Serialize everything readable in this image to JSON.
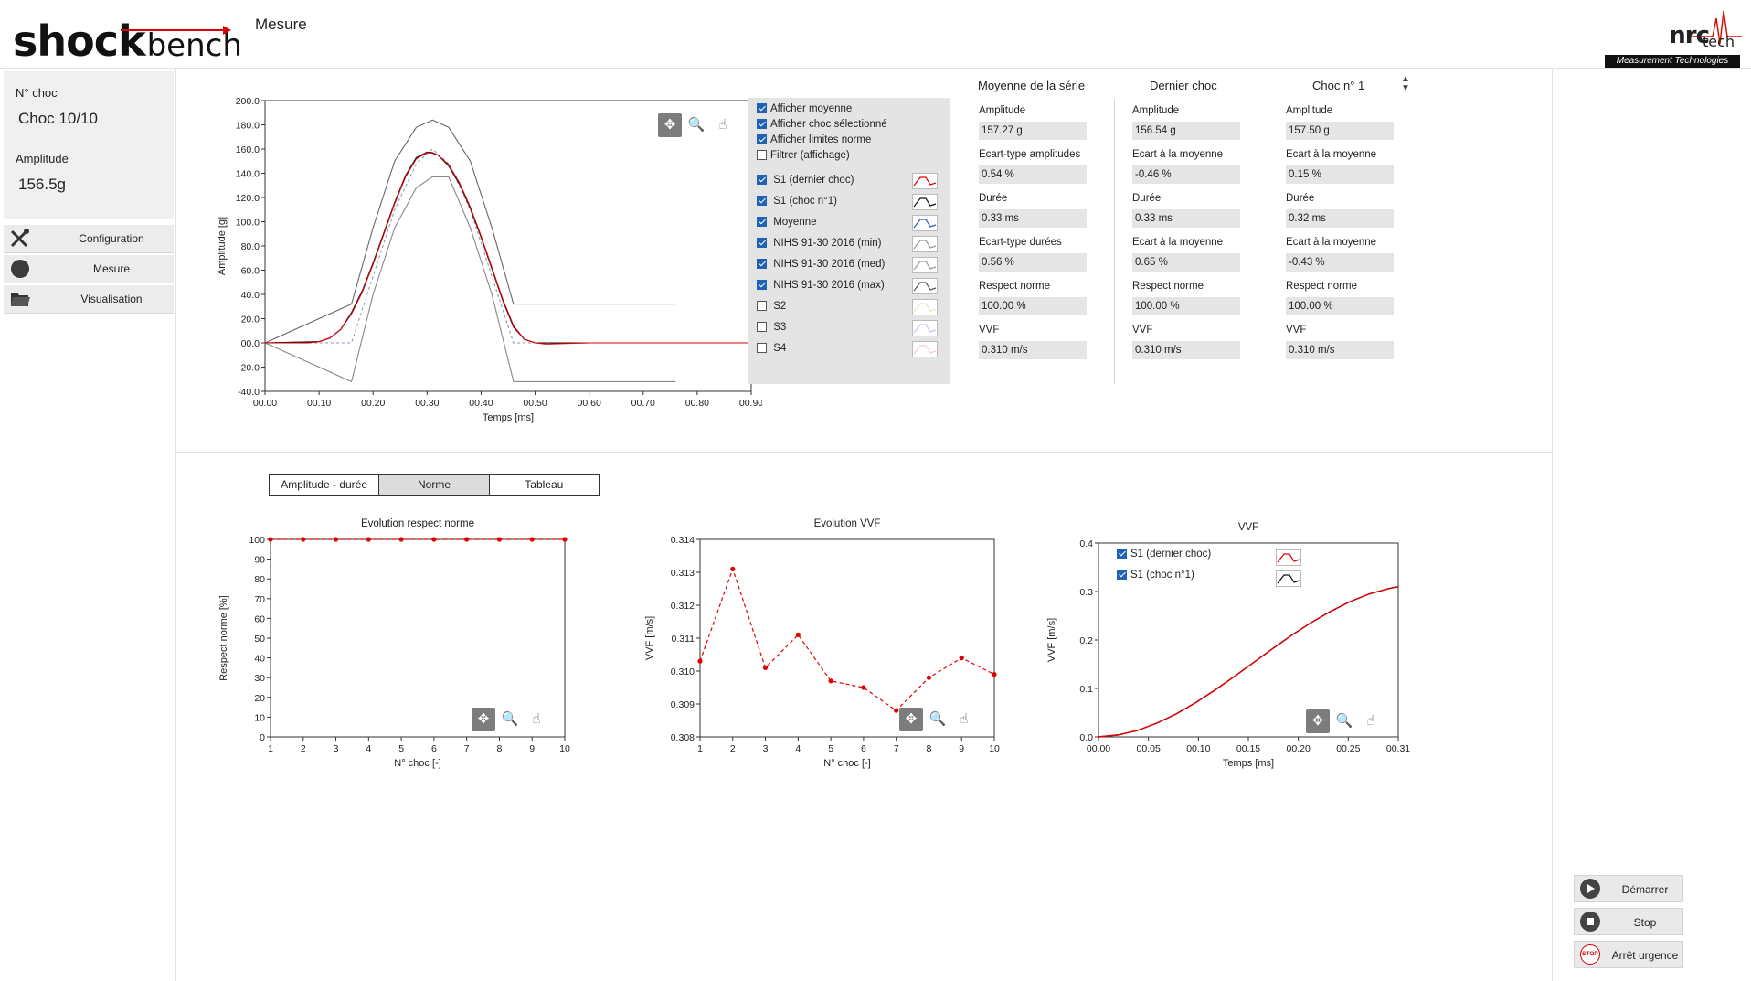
{
  "app": {
    "logo_main": "shock",
    "logo_sub": "bench",
    "page_title": "Mesure",
    "brand_name": "nrc",
    "brand_tech": "tech",
    "brand_tagline": "Measurement Technologies"
  },
  "sidebar": {
    "shock_no_label": "N° choc",
    "shock_no_value": "Choc 10/10",
    "amplitude_label": "Amplitude",
    "amplitude_value": "156.5g",
    "nav": [
      {
        "label": "Configuration",
        "icon": "wrench-screwdriver-icon"
      },
      {
        "label": "Mesure",
        "icon": "record-circle-icon"
      },
      {
        "label": "Visualisation",
        "icon": "folder-icon"
      }
    ]
  },
  "main_chart": {
    "legend_options": [
      {
        "label": "Afficher moyenne",
        "checked": true
      },
      {
        "label": "Afficher choc sélectionné",
        "checked": true
      },
      {
        "label": "Afficher limites norme",
        "checked": true
      },
      {
        "label": "Filtrer (affichage)",
        "checked": false
      }
    ],
    "legend_series": [
      {
        "label": "S1 (dernier choc)",
        "checked": true,
        "color": "#e00000"
      },
      {
        "label": "S1 (choc n°1)",
        "checked": true,
        "color": "#111111"
      },
      {
        "label": "Moyenne",
        "checked": true,
        "color": "#3355cc"
      },
      {
        "label": "NIHS 91-30 2016 (min)",
        "checked": true,
        "color": "#999999"
      },
      {
        "label": "NIHS 91-30 2016 (med)",
        "checked": true,
        "color": "#999999"
      },
      {
        "label": "NIHS 91-30 2016 (max)",
        "checked": true,
        "color": "#555555"
      },
      {
        "label": "S2",
        "checked": false,
        "color": "#d9cc88"
      },
      {
        "label": "S3",
        "checked": false,
        "color": "#8899dd"
      },
      {
        "label": "S4",
        "checked": false,
        "color": "#e8a0b0"
      }
    ]
  },
  "stats": {
    "columns": [
      {
        "header": "Moyenne de la série",
        "fields": [
          {
            "label": "Amplitude",
            "value": "157.27 g"
          },
          {
            "label": "Ecart-type amplitudes",
            "value": "0.54 %"
          },
          {
            "label": "Durée",
            "value": "0.33 ms"
          },
          {
            "label": "Ecart-type durées",
            "value": "0.56 %"
          },
          {
            "label": "Respect norme",
            "value": "100.00 %"
          },
          {
            "label": "VVF",
            "value": "0.310 m/s"
          }
        ]
      },
      {
        "header": "Dernier choc",
        "fields": [
          {
            "label": "Amplitude",
            "value": "156.54 g"
          },
          {
            "label": "Ecart à la moyenne",
            "value": "-0.46 %"
          },
          {
            "label": "Durée",
            "value": "0.33 ms"
          },
          {
            "label": "Ecart à la moyenne",
            "value": "0.65 %"
          },
          {
            "label": "Respect norme",
            "value": "100.00 %"
          },
          {
            "label": "VVF",
            "value": "0.310 m/s"
          }
        ]
      },
      {
        "header": "Choc n° 1",
        "fields": [
          {
            "label": "Amplitude",
            "value": "157.50 g"
          },
          {
            "label": "Ecart à la moyenne",
            "value": "0.15 %"
          },
          {
            "label": "Durée",
            "value": "0.32 ms"
          },
          {
            "label": "Ecart à la moyenne",
            "value": "-0.43 %"
          },
          {
            "label": "Respect norme",
            "value": "100.00 %"
          },
          {
            "label": "VVF",
            "value": "0.310 m/s"
          }
        ]
      }
    ]
  },
  "tabs": [
    {
      "label": "Amplitude - durée",
      "selected": false
    },
    {
      "label": "Norme",
      "selected": true
    },
    {
      "label": "Tableau",
      "selected": false
    }
  ],
  "bottom_legend": [
    {
      "label": "S1 (dernier choc)",
      "checked": true,
      "color": "#e00000"
    },
    {
      "label": "S1 (choc n°1)",
      "checked": true,
      "color": "#111111"
    }
  ],
  "actions": [
    {
      "label": "Démarrer",
      "icon": "play-icon"
    },
    {
      "label": "Stop",
      "icon": "stop-icon"
    },
    {
      "label": "Arrêt urgence",
      "icon": "emergency-stop-icon",
      "icon_text": "STOP"
    }
  ],
  "toolbar_icons": [
    "pan-icon",
    "zoom-icon",
    "hand-pointer-icon"
  ],
  "chart_data": [
    {
      "type": "line",
      "xlabel": "Temps [ms]",
      "ylabel": "Amplitude [g]",
      "xlim": [
        0,
        0.9
      ],
      "ylim": [
        -40,
        200
      ],
      "xticks": [
        "00.00",
        "00.10",
        "00.20",
        "00.30",
        "00.40",
        "00.50",
        "00.60",
        "00.70",
        "00.80",
        "00.90"
      ],
      "yticks": [
        "-40.0",
        "-20.0",
        "00.0",
        "20.0",
        "40.0",
        "60.0",
        "80.0",
        "100.0",
        "120.0",
        "140.0",
        "160.0",
        "180.0",
        "200.0"
      ],
      "series": [
        {
          "name": "S1 (dernier choc)",
          "color": "#e00000",
          "x": [
            0,
            0.03,
            0.05,
            0.08,
            0.1,
            0.12,
            0.14,
            0.16,
            0.18,
            0.2,
            0.22,
            0.24,
            0.26,
            0.28,
            0.3,
            0.31,
            0.32,
            0.34,
            0.36,
            0.38,
            0.4,
            0.42,
            0.44,
            0.46,
            0.48,
            0.5,
            0.52,
            0.6,
            0.7,
            0.8,
            0.9
          ],
          "y": [
            0,
            0,
            0,
            0,
            1,
            4,
            11,
            24,
            42,
            65,
            90,
            115,
            137,
            152,
            157,
            156.5,
            155,
            147,
            132,
            112,
            88,
            62,
            36,
            14,
            3,
            0,
            -1,
            0,
            0,
            0,
            0
          ]
        },
        {
          "name": "S1 (choc n°1)",
          "color": "#111111",
          "x": [
            0,
            0.1,
            0.12,
            0.14,
            0.16,
            0.18,
            0.2,
            0.22,
            0.24,
            0.26,
            0.28,
            0.3,
            0.31,
            0.32,
            0.34,
            0.36,
            0.38,
            0.4,
            0.42,
            0.44,
            0.46,
            0.48,
            0.5,
            0.9
          ],
          "y": [
            0,
            1,
            4,
            11,
            25,
            43,
            66,
            91,
            116,
            138,
            153,
            157.5,
            157,
            155,
            146,
            131,
            111,
            87,
            61,
            35,
            13,
            3,
            0,
            0
          ]
        },
        {
          "name": "Moyenne",
          "color": "#3355cc",
          "x": [
            0,
            0.1,
            0.12,
            0.14,
            0.16,
            0.18,
            0.2,
            0.22,
            0.24,
            0.26,
            0.28,
            0.3,
            0.31,
            0.32,
            0.34,
            0.36,
            0.38,
            0.4,
            0.42,
            0.44,
            0.46,
            0.48,
            0.5,
            0.9
          ],
          "y": [
            0,
            1,
            4,
            11,
            24,
            42,
            65,
            90,
            115,
            137,
            152,
            157.3,
            157,
            155,
            147,
            132,
            112,
            88,
            62,
            36,
            14,
            3,
            0,
            0
          ]
        },
        {
          "name": "NIHS 91-30 2016 (min)",
          "color": "#888888",
          "x": [
            0,
            0.16,
            0.2,
            0.24,
            0.28,
            0.31,
            0.34,
            0.38,
            0.42,
            0.46,
            0.76
          ],
          "y": [
            0,
            -32,
            40,
            95,
            128,
            137,
            137,
            95,
            40,
            -32,
            -32
          ]
        },
        {
          "name": "NIHS 91-30 2016 (med)",
          "color": "#8899bb",
          "x": [
            0,
            0.16,
            0.2,
            0.24,
            0.28,
            0.31,
            0.34,
            0.38,
            0.42,
            0.46,
            0.9
          ],
          "y": [
            0,
            0,
            55,
            110,
            148,
            160,
            148,
            110,
            55,
            0,
            0
          ]
        },
        {
          "name": "NIHS 91-30 2016 (max)",
          "color": "#666666",
          "x": [
            0,
            0.16,
            0.2,
            0.24,
            0.28,
            0.31,
            0.34,
            0.38,
            0.42,
            0.46,
            0.76
          ],
          "y": [
            0,
            32,
            95,
            150,
            178,
            184,
            178,
            150,
            95,
            32,
            32
          ]
        }
      ]
    },
    {
      "type": "line",
      "title": "Evolution respect norme",
      "xlabel": "N° choc [-]",
      "ylabel": "Respect norme [%]",
      "xlim": [
        1,
        10
      ],
      "ylim": [
        0,
        100
      ],
      "xticks": [
        "1",
        "2",
        "3",
        "4",
        "5",
        "6",
        "7",
        "8",
        "9",
        "10"
      ],
      "yticks": [
        "0",
        "10",
        "20",
        "30",
        "40",
        "50",
        "60",
        "70",
        "80",
        "90",
        "100"
      ],
      "series": [
        {
          "color": "#e00000",
          "x": [
            1,
            2,
            3,
            4,
            5,
            6,
            7,
            8,
            9,
            10
          ],
          "y": [
            100,
            100,
            100,
            100,
            100,
            100,
            100,
            100,
            100,
            100
          ]
        }
      ]
    },
    {
      "type": "line",
      "title": "Evolution VVF",
      "xlabel": "N° choc [-]",
      "ylabel": "VVF [m/s]",
      "xlim": [
        1,
        10
      ],
      "ylim": [
        0.308,
        0.314
      ],
      "xticks": [
        "1",
        "2",
        "3",
        "4",
        "5",
        "6",
        "7",
        "8",
        "9",
        "10"
      ],
      "yticks": [
        "0.308",
        "0.309",
        "0.310",
        "0.311",
        "0.312",
        "0.313",
        "0.314"
      ],
      "series": [
        {
          "color": "#e00000",
          "x": [
            1,
            2,
            3,
            4,
            5,
            6,
            7,
            8,
            9,
            10
          ],
          "y": [
            0.3103,
            0.3131,
            0.3101,
            0.3111,
            0.3097,
            0.3095,
            0.3088,
            0.3098,
            0.3104,
            0.3099
          ]
        }
      ]
    },
    {
      "type": "line",
      "title": "VVF",
      "xlabel": "Temps [ms]",
      "ylabel": "VVF [m/s]",
      "xlim": [
        0,
        0.31
      ],
      "ylim": [
        0,
        0.4
      ],
      "xticks": [
        "00.00",
        "00.05",
        "00.10",
        "00.15",
        "00.20",
        "00.25",
        "00.31"
      ],
      "yticks": [
        "0.0",
        "0.1",
        "0.2",
        "0.3",
        "0.4"
      ],
      "series": [
        {
          "name": "S1 (dernier choc)",
          "color": "#e00000",
          "x": [
            0,
            0.02,
            0.04,
            0.06,
            0.08,
            0.1,
            0.12,
            0.14,
            0.16,
            0.18,
            0.2,
            0.22,
            0.24,
            0.26,
            0.28,
            0.3,
            0.31
          ],
          "y": [
            0,
            0.004,
            0.013,
            0.028,
            0.047,
            0.07,
            0.096,
            0.124,
            0.153,
            0.182,
            0.21,
            0.236,
            0.259,
            0.279,
            0.295,
            0.306,
            0.31
          ]
        },
        {
          "name": "S1 (choc n°1)",
          "color": "#111111",
          "x": [
            0,
            0.02,
            0.04,
            0.06,
            0.08,
            0.1,
            0.12,
            0.14,
            0.16,
            0.18,
            0.2,
            0.22,
            0.24,
            0.26,
            0.28,
            0.3,
            0.31
          ],
          "y": [
            0,
            0.004,
            0.013,
            0.028,
            0.047,
            0.07,
            0.096,
            0.124,
            0.153,
            0.182,
            0.21,
            0.236,
            0.259,
            0.279,
            0.295,
            0.306,
            0.31
          ]
        }
      ]
    }
  ]
}
